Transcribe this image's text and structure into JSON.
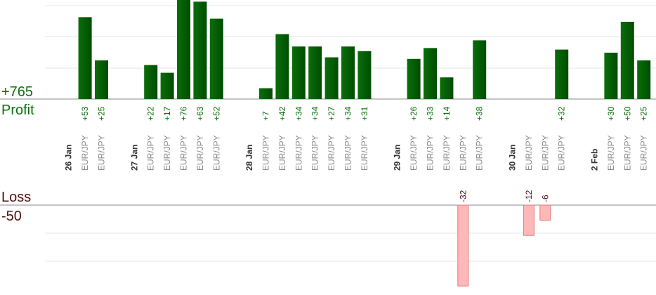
{
  "summary": {
    "profit_total": "+765",
    "profit_label": "Profit",
    "loss_label": "Loss",
    "loss_total": "-50"
  },
  "colors": {
    "profit_bar": "#0a6e0a",
    "profit_bar_dark": "#004d00",
    "profit_text": "#0a6e0a",
    "loss_bar": "#ffb8b8",
    "loss_bar_edge": "#e07a7a",
    "loss_text": "#4a0f0f",
    "axis": "#888888",
    "grid": "#e6e6e6",
    "date_label": "#333333",
    "pair_label": "#8a8a8a"
  },
  "chart_data": {
    "type": "bar",
    "profit_axis_max": 60,
    "loss_axis_max": 30,
    "days": [
      {
        "date": "26 Jan",
        "trades": [
          {
            "pair": "EUR/JPY",
            "value": 53
          },
          {
            "pair": "EUR/JPY",
            "value": 25
          }
        ]
      },
      {
        "date": "27 Jan",
        "trades": [
          {
            "pair": "EUR/JPY",
            "value": 22
          },
          {
            "pair": "EUR/JPY",
            "value": 17
          },
          {
            "pair": "EUR/JPY",
            "value": 76
          },
          {
            "pair": "EUR/JPY",
            "value": 63
          },
          {
            "pair": "EUR/JPY",
            "value": 52
          }
        ]
      },
      {
        "date": "28 Jan",
        "trades": [
          {
            "pair": "EUR/JPY",
            "value": 7
          },
          {
            "pair": "EUR/JPY",
            "value": 42
          },
          {
            "pair": "EUR/JPY",
            "value": 34
          },
          {
            "pair": "EUR/JPY",
            "value": 34
          },
          {
            "pair": "EUR/JPY",
            "value": 27
          },
          {
            "pair": "EUR/JPY",
            "value": 34
          },
          {
            "pair": "EUR/JPY",
            "value": 31
          }
        ]
      },
      {
        "date": "29 Jan",
        "trades": [
          {
            "pair": "EUR/JPY",
            "value": 26
          },
          {
            "pair": "EUR/JPY",
            "value": 33
          },
          {
            "pair": "EUR/JPY",
            "value": 14
          },
          {
            "pair": "EUR/JPY",
            "value": -32
          },
          {
            "pair": "EUR/JPY",
            "value": 38
          }
        ]
      },
      {
        "date": "30 Jan",
        "trades": [
          {
            "pair": "EUR/JPY",
            "value": -12
          },
          {
            "pair": "EUR/JPY",
            "value": -6
          },
          {
            "pair": "EUR/JPY",
            "value": 32
          }
        ]
      },
      {
        "date": "2 Feb",
        "trades": [
          {
            "pair": "EUR/JPY",
            "value": 30
          },
          {
            "pair": "EUR/JPY",
            "value": 50
          },
          {
            "pair": "EUR/JPY",
            "value": 25
          }
        ]
      }
    ]
  }
}
